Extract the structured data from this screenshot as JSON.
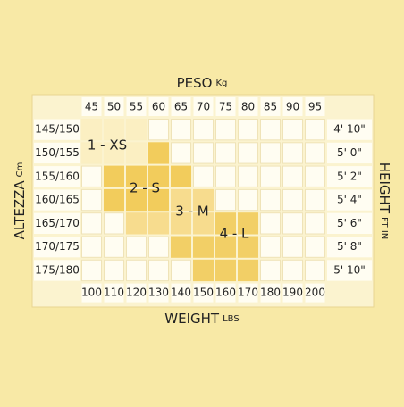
{
  "title": {
    "main": "PESO",
    "unit": "Kg"
  },
  "footer": {
    "main": "WEIGHT",
    "unit": "LBS"
  },
  "left_axis": {
    "main": "ALTEZZA",
    "unit": "Cm"
  },
  "right_axis": {
    "main": "HEIGHT",
    "unit": "FT IN"
  },
  "kg": [
    "45",
    "50",
    "55",
    "60",
    "65",
    "70",
    "75",
    "80",
    "85",
    "90",
    "95"
  ],
  "lbs": [
    "100",
    "110",
    "120",
    "130",
    "140",
    "150",
    "160",
    "170",
    "180",
    "190",
    "200"
  ],
  "cm": [
    "145/150",
    "150/155",
    "155/160",
    "160/165",
    "165/170",
    "170/175",
    "175/180"
  ],
  "ft_in": [
    "4' 10\"",
    "5' 0\"",
    "5' 2\"",
    "5' 4\"",
    "5' 6\"",
    "5' 8\"",
    "5' 10\""
  ],
  "sizes": [
    "1 - XS",
    "2 - S",
    "3 - M",
    "4 - L"
  ]
}
